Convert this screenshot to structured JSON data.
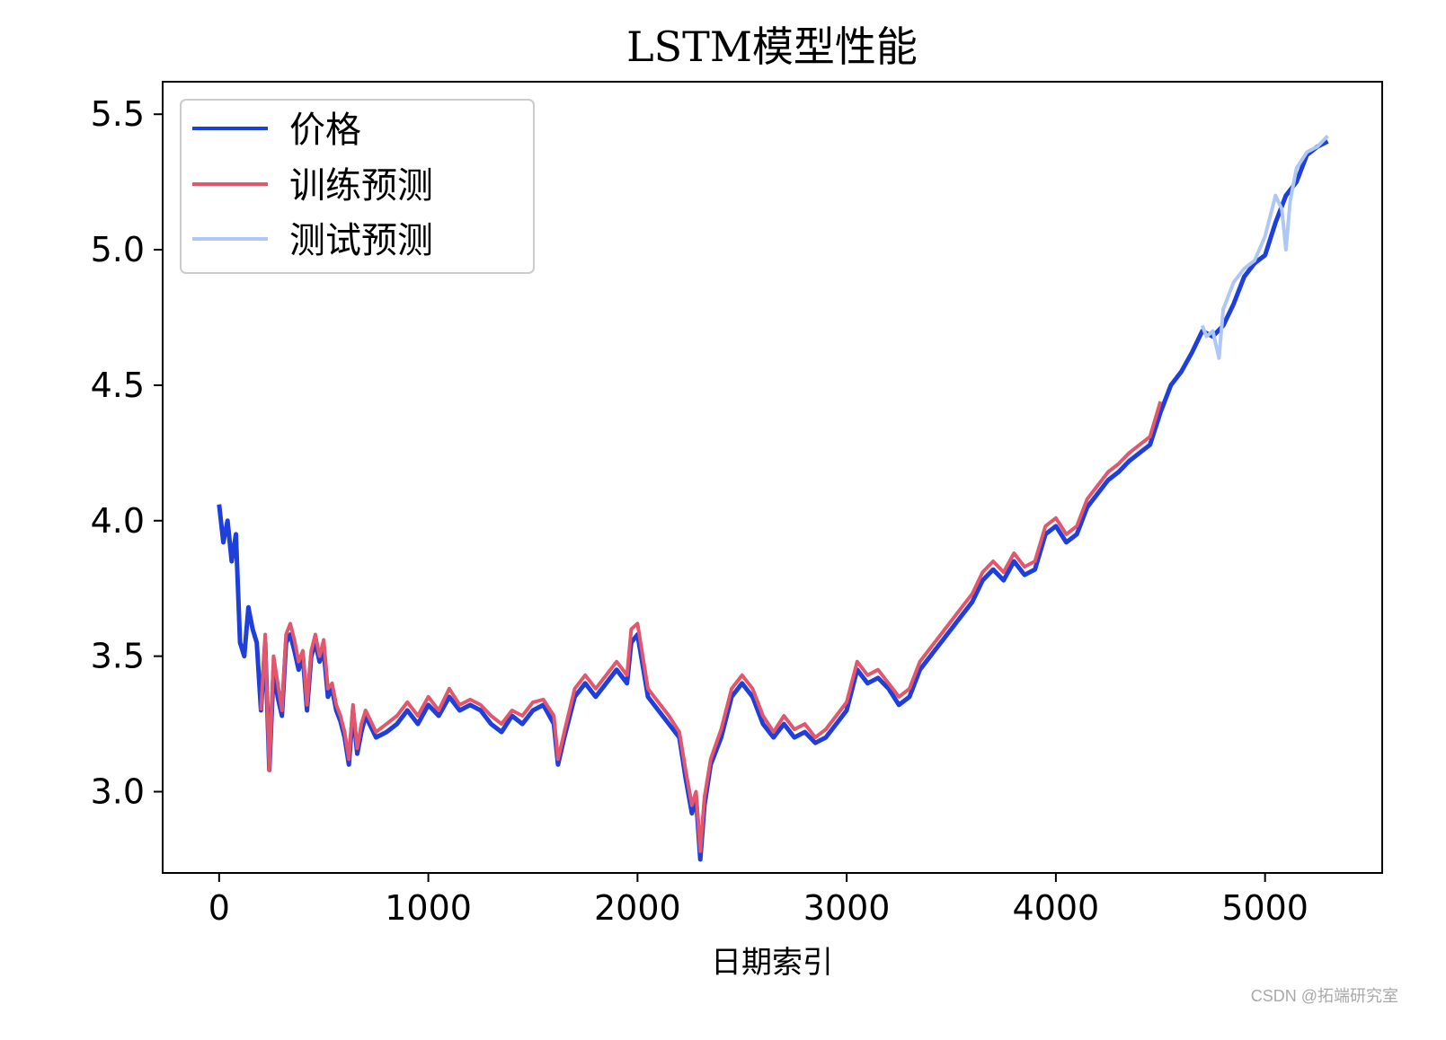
{
  "chart_data": {
    "type": "line",
    "title": "LSTM模型性能",
    "xlabel": "日期索引",
    "ylabel": "",
    "xlim": [
      -270,
      5560
    ],
    "ylim": [
      2.7,
      5.62
    ],
    "x_ticks": [
      0,
      1000,
      2000,
      3000,
      4000,
      5000
    ],
    "x_tick_labels": [
      "0",
      "1000",
      "2000",
      "3000",
      "4000",
      "5000"
    ],
    "y_ticks": [
      3.0,
      3.5,
      4.0,
      4.5,
      5.0,
      5.5
    ],
    "y_tick_labels": [
      "3.0",
      "3.5",
      "4.0",
      "4.5",
      "5.0",
      "5.5"
    ],
    "grid": false,
    "legend_position": "top-left",
    "series": [
      {
        "name": "价格",
        "color": "#1f3fdd",
        "x": [
          0,
          20,
          40,
          60,
          80,
          100,
          120,
          140,
          160,
          180,
          200,
          220,
          240,
          260,
          280,
          300,
          320,
          340,
          360,
          380,
          400,
          420,
          440,
          460,
          480,
          500,
          520,
          540,
          560,
          580,
          600,
          620,
          640,
          660,
          680,
          700,
          750,
          800,
          850,
          900,
          950,
          1000,
          1050,
          1100,
          1150,
          1200,
          1250,
          1300,
          1350,
          1400,
          1450,
          1500,
          1550,
          1600,
          1620,
          1650,
          1700,
          1750,
          1800,
          1850,
          1900,
          1950,
          1970,
          2000,
          2050,
          2100,
          2150,
          2200,
          2230,
          2260,
          2280,
          2300,
          2320,
          2350,
          2400,
          2450,
          2500,
          2550,
          2600,
          2650,
          2700,
          2750,
          2800,
          2850,
          2900,
          2950,
          3000,
          3050,
          3100,
          3150,
          3200,
          3250,
          3300,
          3350,
          3400,
          3450,
          3500,
          3550,
          3600,
          3650,
          3700,
          3750,
          3800,
          3850,
          3900,
          3950,
          4000,
          4050,
          4100,
          4150,
          4200,
          4250,
          4300,
          4350,
          4400,
          4450,
          4500,
          4550,
          4600,
          4650,
          4700,
          4750,
          4800,
          4850,
          4900,
          4950,
          5000,
          5050,
          5100,
          5150,
          5200,
          5250,
          5300
        ],
        "y": [
          4.06,
          3.92,
          4.0,
          3.85,
          3.95,
          3.55,
          3.5,
          3.68,
          3.6,
          3.55,
          3.3,
          3.55,
          3.08,
          3.45,
          3.35,
          3.28,
          3.55,
          3.58,
          3.52,
          3.45,
          3.5,
          3.3,
          3.5,
          3.55,
          3.48,
          3.52,
          3.35,
          3.38,
          3.3,
          3.26,
          3.2,
          3.1,
          3.3,
          3.14,
          3.22,
          3.28,
          3.2,
          3.22,
          3.25,
          3.3,
          3.25,
          3.32,
          3.28,
          3.35,
          3.3,
          3.32,
          3.3,
          3.25,
          3.22,
          3.28,
          3.25,
          3.3,
          3.32,
          3.25,
          3.1,
          3.2,
          3.35,
          3.4,
          3.35,
          3.4,
          3.45,
          3.4,
          3.55,
          3.58,
          3.35,
          3.3,
          3.25,
          3.2,
          3.05,
          2.92,
          2.98,
          2.75,
          2.95,
          3.1,
          3.2,
          3.35,
          3.4,
          3.35,
          3.25,
          3.2,
          3.25,
          3.2,
          3.22,
          3.18,
          3.2,
          3.25,
          3.3,
          3.45,
          3.4,
          3.42,
          3.38,
          3.32,
          3.35,
          3.45,
          3.5,
          3.55,
          3.6,
          3.65,
          3.7,
          3.78,
          3.82,
          3.78,
          3.85,
          3.8,
          3.82,
          3.95,
          3.98,
          3.92,
          3.95,
          4.05,
          4.1,
          4.15,
          4.18,
          4.22,
          4.25,
          4.28,
          4.4,
          4.5,
          4.55,
          4.62,
          4.7,
          4.68,
          4.72,
          4.8,
          4.9,
          4.95,
          4.98,
          5.1,
          5.2,
          5.25,
          5.35,
          5.38,
          5.4
        ]
      },
      {
        "name": "训练预测",
        "color": "#e3566b",
        "x": [
          200,
          220,
          240,
          260,
          280,
          300,
          320,
          340,
          360,
          380,
          400,
          420,
          440,
          460,
          480,
          500,
          520,
          540,
          560,
          580,
          600,
          620,
          640,
          660,
          680,
          700,
          750,
          800,
          850,
          900,
          950,
          1000,
          1050,
          1100,
          1150,
          1200,
          1250,
          1300,
          1350,
          1400,
          1450,
          1500,
          1550,
          1600,
          1620,
          1650,
          1700,
          1750,
          1800,
          1850,
          1900,
          1950,
          1970,
          2000,
          2050,
          2100,
          2150,
          2200,
          2230,
          2260,
          2280,
          2300,
          2320,
          2350,
          2400,
          2450,
          2500,
          2550,
          2600,
          2650,
          2700,
          2750,
          2800,
          2850,
          2900,
          2950,
          3000,
          3050,
          3100,
          3150,
          3200,
          3250,
          3300,
          3350,
          3400,
          3450,
          3500,
          3550,
          3600,
          3650,
          3700,
          3750,
          3800,
          3850,
          3900,
          3950,
          4000,
          4050,
          4100,
          4150,
          4200,
          4250,
          4300,
          4350,
          4400,
          4450,
          4500
        ],
        "y": [
          3.3,
          3.58,
          3.08,
          3.5,
          3.4,
          3.3,
          3.58,
          3.62,
          3.56,
          3.48,
          3.52,
          3.32,
          3.52,
          3.58,
          3.5,
          3.56,
          3.38,
          3.4,
          3.32,
          3.28,
          3.22,
          3.12,
          3.32,
          3.16,
          3.25,
          3.3,
          3.22,
          3.25,
          3.28,
          3.33,
          3.28,
          3.35,
          3.3,
          3.38,
          3.32,
          3.34,
          3.32,
          3.28,
          3.25,
          3.3,
          3.28,
          3.33,
          3.34,
          3.28,
          3.12,
          3.22,
          3.38,
          3.43,
          3.38,
          3.43,
          3.48,
          3.43,
          3.6,
          3.62,
          3.38,
          3.33,
          3.28,
          3.22,
          3.08,
          2.95,
          3.0,
          2.78,
          2.98,
          3.12,
          3.23,
          3.38,
          3.43,
          3.38,
          3.28,
          3.22,
          3.28,
          3.23,
          3.25,
          3.2,
          3.23,
          3.28,
          3.33,
          3.48,
          3.43,
          3.45,
          3.4,
          3.35,
          3.38,
          3.48,
          3.53,
          3.58,
          3.63,
          3.68,
          3.73,
          3.81,
          3.85,
          3.81,
          3.88,
          3.83,
          3.85,
          3.98,
          4.01,
          3.95,
          3.98,
          4.08,
          4.13,
          4.18,
          4.21,
          4.25,
          4.28,
          4.31,
          4.44
        ]
      },
      {
        "name": "测试预测",
        "color": "#aec7f5",
        "x": [
          4700,
          4720,
          4750,
          4780,
          4800,
          4850,
          4900,
          4950,
          5000,
          5050,
          5080,
          5100,
          5120,
          5150,
          5200,
          5250,
          5300
        ],
        "y": [
          4.72,
          4.68,
          4.7,
          4.6,
          4.78,
          4.88,
          4.93,
          4.96,
          5.05,
          5.2,
          5.15,
          5.0,
          5.18,
          5.3,
          5.36,
          5.38,
          5.42
        ]
      }
    ]
  },
  "watermark": "CSDN @拓端研究室"
}
